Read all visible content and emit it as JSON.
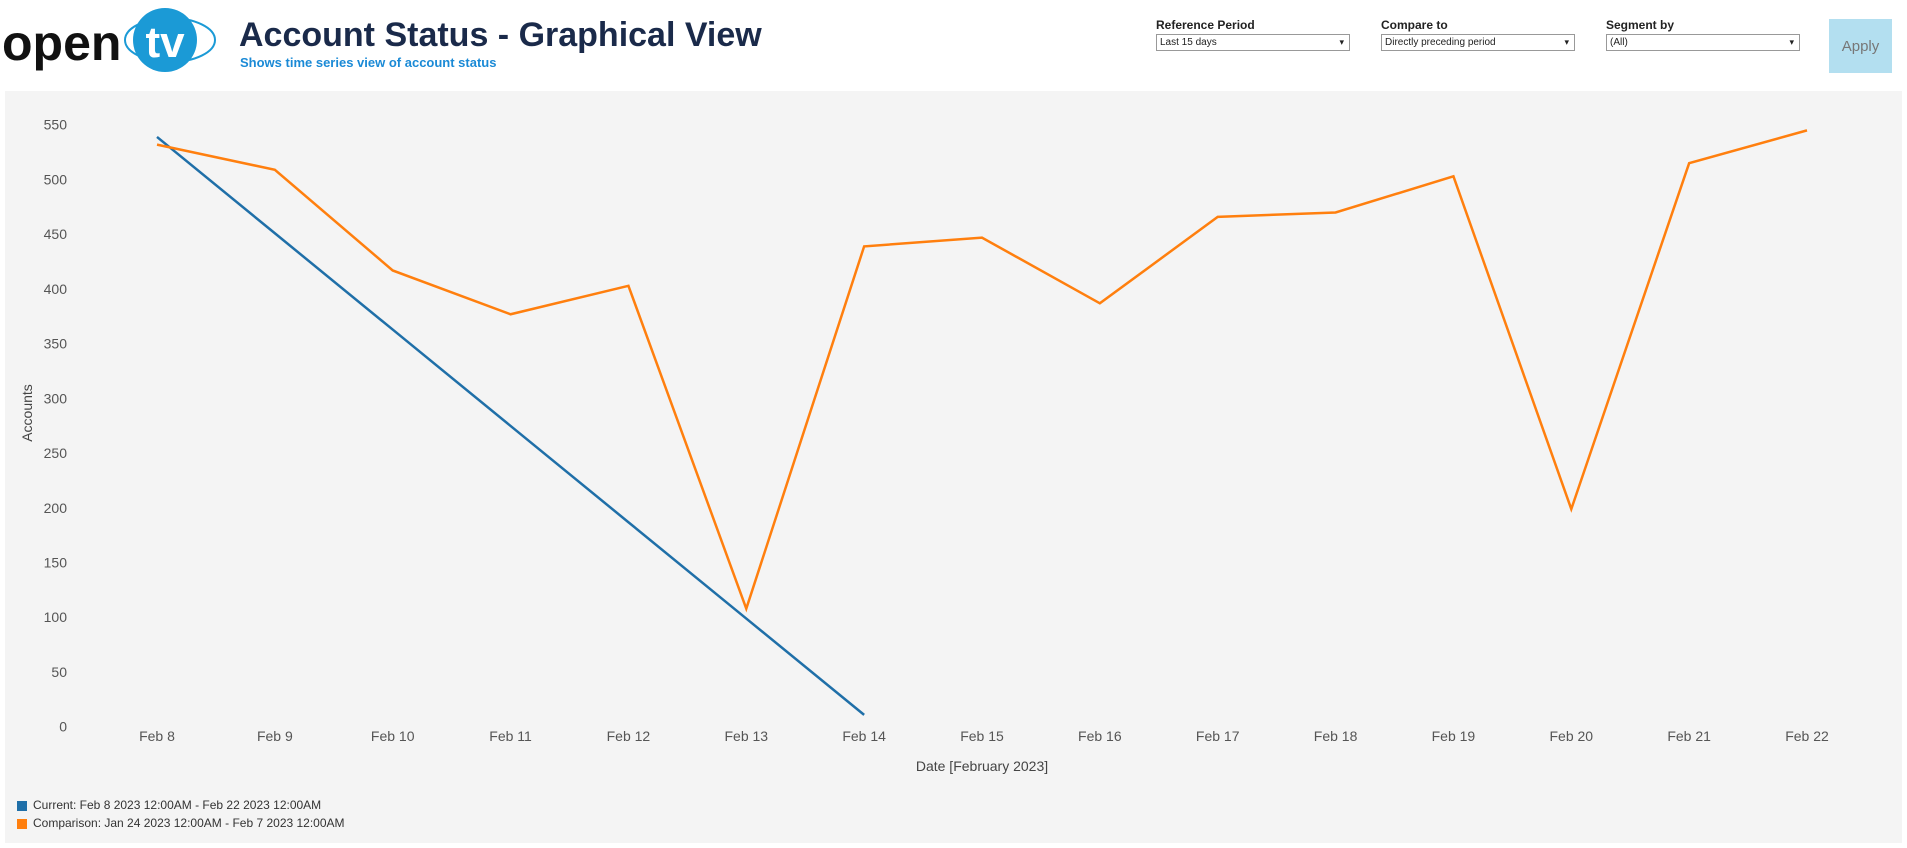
{
  "brand": {
    "left": "open",
    "right": "tv"
  },
  "header": {
    "title": "Account Status - Graphical View",
    "subtitle": "Shows time series view of account status"
  },
  "controls": [
    {
      "label": "Reference Period",
      "value": "Last 15 days"
    },
    {
      "label": "Compare to",
      "value": "Directly preceding period"
    },
    {
      "label": "Segment by",
      "value": "(All)"
    }
  ],
  "apply": "Apply",
  "chart_data": {
    "type": "line",
    "x_label": "Date [February 2023]",
    "y_label": "Accounts",
    "categories": [
      "Feb 8",
      "Feb 9",
      "Feb 10",
      "Feb 11",
      "Feb 12",
      "Feb 13",
      "Feb 14",
      "Feb 15",
      "Feb 16",
      "Feb 17",
      "Feb 18",
      "Feb 19",
      "Feb 20",
      "Feb 21",
      "Feb 22"
    ],
    "series": [
      {
        "name": "Current: Feb 8 2023 12:00AM - Feb 22 2023 12:00AM",
        "color": "#1f6fa8",
        "values": [
          540,
          452,
          364,
          276,
          188,
          100,
          12,
          null,
          null,
          null,
          null,
          null,
          null,
          null,
          null
        ]
      },
      {
        "name": "Comparison: Jan 24 2023 12:00AM - Feb 7 2023 12:00AM",
        "color": "#ff7f0e",
        "values": [
          533,
          510,
          418,
          378,
          404,
          109,
          440,
          448,
          388,
          467,
          471,
          504,
          200,
          516,
          546
        ]
      }
    ],
    "ylim": [
      0,
      550
    ],
    "yticks": [
      0,
      50,
      100,
      150,
      200,
      250,
      300,
      350,
      400,
      450,
      500,
      550
    ],
    "grid": false
  }
}
